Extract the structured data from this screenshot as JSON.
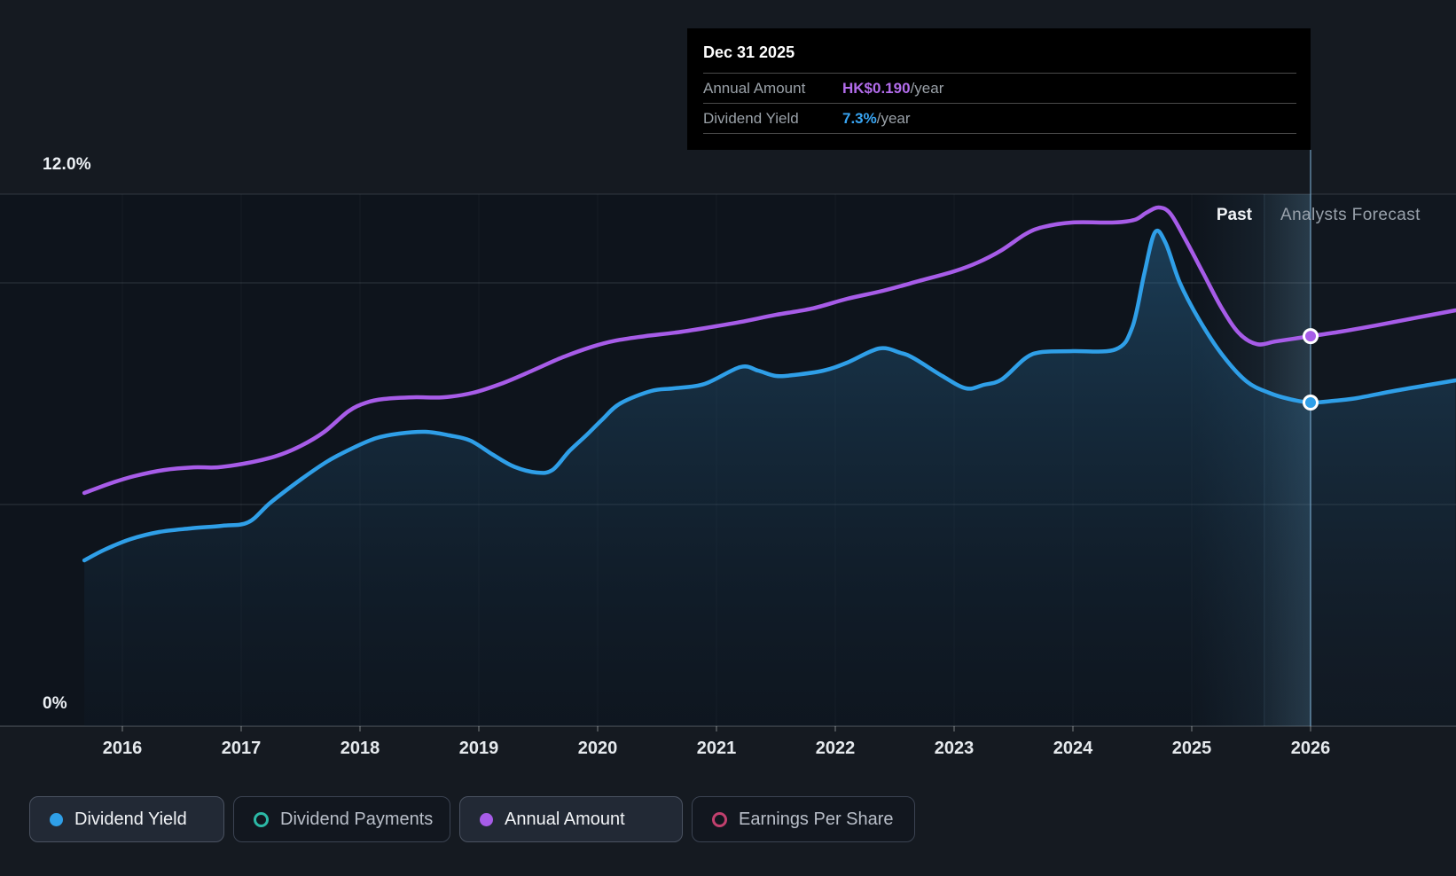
{
  "labels": {
    "past": "Past",
    "forecast": "Analysts Forecast"
  },
  "tooltip": {
    "title": "Dec 31 2025",
    "rows": [
      {
        "label": "Annual Amount",
        "value": "HK$0.190",
        "suffix": "/year",
        "color": "#b26ceb"
      },
      {
        "label": "Dividend Yield",
        "value": "7.3%",
        "suffix": "/year",
        "color": "#38a5f3"
      }
    ]
  },
  "legend": {
    "items": [
      {
        "label": "Dividend Yield",
        "color": "#2f9fe8",
        "filled": true,
        "active": true
      },
      {
        "label": "Dividend Payments",
        "color": "#2cb9a6",
        "filled": false,
        "active": false
      },
      {
        "label": "Annual Amount",
        "color": "#a75ce8",
        "filled": true,
        "active": true
      },
      {
        "label": "Earnings Per Share",
        "color": "#c2406e",
        "filled": false,
        "active": false
      }
    ]
  },
  "chart_data": {
    "type": "line",
    "title": "Dividend history and forecast",
    "x_ticks": [
      "2016",
      "2017",
      "2018",
      "2019",
      "2020",
      "2021",
      "2022",
      "2023",
      "2024",
      "2025",
      "2026"
    ],
    "x_range": [
      2015.68,
      2027.22
    ],
    "y_axis": {
      "unit": "%",
      "labels": [
        {
          "text": "12.0%",
          "value": 12
        },
        {
          "text": "0%",
          "value": 0
        }
      ],
      "gridlines_pct": [
        12,
        10,
        5,
        0
      ],
      "ylim": [
        0,
        12.4
      ]
    },
    "regions": {
      "past_label": "Past",
      "forecast_label": "Analysts Forecast",
      "highlight_band": [
        2025.0,
        2026.0
      ],
      "forecast_boundary": 2025.61,
      "marker_x": 2026.0
    },
    "series": [
      {
        "name": "Dividend Yield",
        "unit": "%",
        "color": "#2f9fe8",
        "area": true,
        "data": [
          [
            2015.68,
            3.74
          ],
          [
            2015.85,
            3.98
          ],
          [
            2016.07,
            4.22
          ],
          [
            2016.31,
            4.38
          ],
          [
            2016.57,
            4.46
          ],
          [
            2016.84,
            4.52
          ],
          [
            2017.06,
            4.6
          ],
          [
            2017.25,
            5.05
          ],
          [
            2017.51,
            5.58
          ],
          [
            2017.73,
            5.98
          ],
          [
            2017.96,
            6.3
          ],
          [
            2018.14,
            6.5
          ],
          [
            2018.33,
            6.6
          ],
          [
            2018.55,
            6.64
          ],
          [
            2018.75,
            6.56
          ],
          [
            2018.93,
            6.44
          ],
          [
            2019.12,
            6.12
          ],
          [
            2019.3,
            5.85
          ],
          [
            2019.49,
            5.72
          ],
          [
            2019.62,
            5.78
          ],
          [
            2019.76,
            6.2
          ],
          [
            2019.9,
            6.55
          ],
          [
            2020.04,
            6.92
          ],
          [
            2020.19,
            7.28
          ],
          [
            2020.45,
            7.56
          ],
          [
            2020.64,
            7.62
          ],
          [
            2020.9,
            7.72
          ],
          [
            2021.2,
            8.1
          ],
          [
            2021.35,
            8.02
          ],
          [
            2021.5,
            7.9
          ],
          [
            2021.65,
            7.92
          ],
          [
            2021.9,
            8.02
          ],
          [
            2022.1,
            8.2
          ],
          [
            2022.37,
            8.52
          ],
          [
            2022.55,
            8.42
          ],
          [
            2022.66,
            8.3
          ],
          [
            2022.9,
            7.9
          ],
          [
            2023.1,
            7.62
          ],
          [
            2023.25,
            7.7
          ],
          [
            2023.4,
            7.82
          ],
          [
            2023.6,
            8.3
          ],
          [
            2023.74,
            8.44
          ],
          [
            2024.0,
            8.46
          ],
          [
            2024.36,
            8.5
          ],
          [
            2024.5,
            9.0
          ],
          [
            2024.6,
            10.2
          ],
          [
            2024.69,
            11.14
          ],
          [
            2024.78,
            10.9
          ],
          [
            2024.9,
            10.0
          ],
          [
            2025.06,
            9.18
          ],
          [
            2025.25,
            8.4
          ],
          [
            2025.46,
            7.78
          ],
          [
            2025.65,
            7.52
          ],
          [
            2025.82,
            7.38
          ],
          [
            2026.0,
            7.3
          ],
          [
            2026.2,
            7.34
          ],
          [
            2026.39,
            7.4
          ],
          [
            2026.7,
            7.56
          ],
          [
            2027.0,
            7.7
          ],
          [
            2027.22,
            7.8
          ]
        ]
      },
      {
        "name": "Annual Amount",
        "unit": "HK$",
        "color": "#a75ce8",
        "area": false,
        "data": [
          [
            2015.68,
            0.1136
          ],
          [
            2015.9,
            0.1183
          ],
          [
            2016.1,
            0.1218
          ],
          [
            2016.35,
            0.1248
          ],
          [
            2016.6,
            0.1261
          ],
          [
            2016.8,
            0.1261
          ],
          [
            2017.06,
            0.1283
          ],
          [
            2017.3,
            0.1317
          ],
          [
            2017.5,
            0.1365
          ],
          [
            2017.7,
            0.1434
          ],
          [
            2017.9,
            0.1533
          ],
          [
            2018.05,
            0.1576
          ],
          [
            2018.2,
            0.1594
          ],
          [
            2018.45,
            0.1602
          ],
          [
            2018.7,
            0.1602
          ],
          [
            2018.95,
            0.1624
          ],
          [
            2019.2,
            0.1671
          ],
          [
            2019.45,
            0.1732
          ],
          [
            2019.7,
            0.1796
          ],
          [
            2019.95,
            0.1848
          ],
          [
            2020.15,
            0.1878
          ],
          [
            2020.4,
            0.19
          ],
          [
            2020.65,
            0.1917
          ],
          [
            2020.9,
            0.1939
          ],
          [
            2021.2,
            0.1969
          ],
          [
            2021.5,
            0.2004
          ],
          [
            2021.8,
            0.2034
          ],
          [
            2022.1,
            0.2082
          ],
          [
            2022.4,
            0.2121
          ],
          [
            2022.7,
            0.2168
          ],
          [
            2023.0,
            0.2216
          ],
          [
            2023.2,
            0.2259
          ],
          [
            2023.4,
            0.2319
          ],
          [
            2023.6,
            0.2397
          ],
          [
            2023.75,
            0.2432
          ],
          [
            2024.0,
            0.2454
          ],
          [
            2024.35,
            0.2454
          ],
          [
            2024.52,
            0.2467
          ],
          [
            2024.62,
            0.2502
          ],
          [
            2024.72,
            0.2527
          ],
          [
            2024.82,
            0.2497
          ],
          [
            2024.95,
            0.2367
          ],
          [
            2025.1,
            0.2203
          ],
          [
            2025.25,
            0.2039
          ],
          [
            2025.4,
            0.1913
          ],
          [
            2025.55,
            0.1861
          ],
          [
            2025.7,
            0.1874
          ],
          [
            2025.85,
            0.1887
          ],
          [
            2026.0,
            0.19
          ],
          [
            2026.25,
            0.1922
          ],
          [
            2026.55,
            0.1952
          ],
          [
            2026.9,
            0.1991
          ],
          [
            2027.22,
            0.2026
          ]
        ]
      }
    ],
    "markers": [
      {
        "series": "Annual Amount",
        "x": 2026.0,
        "value": 0.19,
        "label": "HK$0.190/year",
        "color": "#a75ce8"
      },
      {
        "series": "Dividend Yield",
        "x": 2026.0,
        "value": 7.3,
        "label": "7.3%/year",
        "color": "#2f9fe8"
      }
    ]
  },
  "colors": {
    "background": "#151a21",
    "plot_background": "#0e141c",
    "gridline": "rgba(225,235,245,0.16)",
    "axis_line": "rgba(225,235,245,0.30)",
    "marker_line": "rgba(120,170,205,0.55)",
    "highlight_band": "rgba(108,168,205,0.16)"
  }
}
